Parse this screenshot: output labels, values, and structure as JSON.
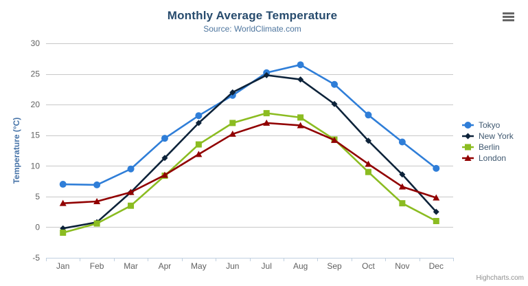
{
  "chart_data": {
    "type": "line",
    "title": "Monthly Average Temperature",
    "subtitle": "Source: WorldClimate.com",
    "xlabel": "",
    "ylabel": "Temperature (°C)",
    "ylim": [
      -5,
      30
    ],
    "ytick_interval": 5,
    "grid": "horizontal-only",
    "legend_position": "right",
    "categories": [
      "Jan",
      "Feb",
      "Mar",
      "Apr",
      "May",
      "Jun",
      "Jul",
      "Aug",
      "Sep",
      "Oct",
      "Nov",
      "Dec"
    ],
    "series": [
      {
        "name": "Tokyo",
        "color": "#2f7ed8",
        "marker": "circle",
        "values": [
          7.0,
          6.9,
          9.5,
          14.5,
          18.2,
          21.5,
          25.2,
          26.5,
          23.3,
          18.3,
          13.9,
          9.6
        ]
      },
      {
        "name": "New York",
        "color": "#0d233a",
        "marker": "diamond",
        "values": [
          -0.2,
          0.8,
          5.7,
          11.3,
          17.0,
          22.0,
          24.8,
          24.1,
          20.1,
          14.1,
          8.6,
          2.5
        ]
      },
      {
        "name": "Berlin",
        "color": "#8bbc21",
        "marker": "square",
        "values": [
          -0.9,
          0.6,
          3.5,
          8.4,
          13.5,
          17.0,
          18.6,
          17.9,
          14.3,
          9.0,
          3.9,
          1.0
        ]
      },
      {
        "name": "London",
        "color": "#910000",
        "marker": "triangle",
        "values": [
          3.9,
          4.2,
          5.7,
          8.5,
          11.9,
          15.2,
          17.0,
          16.6,
          14.2,
          10.3,
          6.6,
          4.8
        ]
      }
    ]
  },
  "credits_label": "Highcharts.com",
  "icons": {
    "export_menu": "hamburger-icon"
  },
  "style_colors": {
    "title": "#274b6d",
    "subtitle": "#4d759e",
    "y_axis_title": "#4572a7",
    "axis_labels": "#606060",
    "grid_line": "#c8c8c8",
    "x_axis_line": "#c0d0e0",
    "legend_text": "#3e576f"
  }
}
